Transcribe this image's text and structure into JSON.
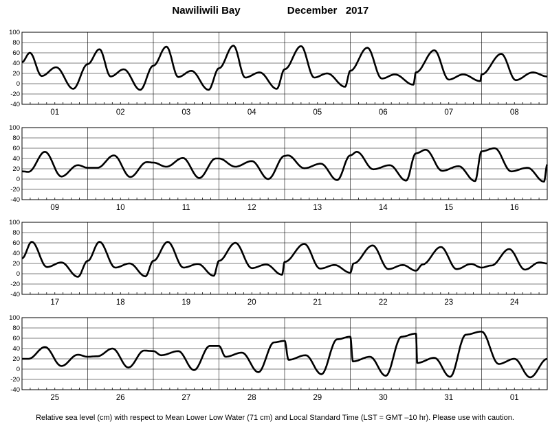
{
  "title": {
    "location": "Nawiliwili Bay",
    "period": "December   2017"
  },
  "footer": "Relative sea level (cm) with respect to Mean Lower Low Water (71 cm) and Local Standard Time (LST = GMT –10 hr). Please use with caution.",
  "chart_data": [
    {
      "type": "line",
      "panel": 1,
      "x_unit": "day of month",
      "categories": [
        "01",
        "02",
        "03",
        "04",
        "05",
        "06",
        "07",
        "08"
      ],
      "ylim": [
        -40,
        100
      ],
      "yticks": [
        -40,
        -20,
        0,
        20,
        40,
        60,
        80,
        100
      ],
      "grid": true,
      "series": [
        {
          "x": [
            0.0,
            0.12,
            0.3,
            0.52,
            0.78,
            1.0,
            1.18,
            1.35,
            1.55,
            1.8,
            2.0,
            2.2,
            2.38,
            2.58,
            2.84,
            3.0,
            3.22,
            3.4,
            3.62,
            3.88,
            4.0,
            4.25,
            4.45,
            4.65,
            4.92,
            5.0,
            5.26,
            5.48,
            5.68,
            5.96,
            6.0,
            6.28,
            6.5,
            6.72,
            6.98,
            7.0,
            7.3,
            7.52,
            7.78,
            8.0
          ],
          "y": [
            42,
            60,
            15,
            32,
            -10,
            38,
            67,
            14,
            28,
            -12,
            35,
            72,
            13,
            25,
            -12,
            30,
            74,
            12,
            22,
            -10,
            28,
            73,
            12,
            20,
            -6,
            25,
            70,
            10,
            18,
            -2,
            22,
            65,
            8,
            18,
            5,
            18,
            58,
            7,
            22,
            14
          ]
        }
      ]
    },
    {
      "type": "line",
      "panel": 2,
      "x_unit": "day of month",
      "categories": [
        "09",
        "10",
        "11",
        "12",
        "13",
        "14",
        "15",
        "16"
      ],
      "ylim": [
        -40,
        100
      ],
      "yticks": [
        -40,
        -20,
        0,
        20,
        40,
        60,
        80,
        100
      ],
      "grid": true,
      "series": [
        {
          "x": [
            8.0,
            8.1,
            8.35,
            8.6,
            8.85,
            9.0,
            9.15,
            9.4,
            9.65,
            9.9,
            10.0,
            10.2,
            10.45,
            10.7,
            10.95,
            11.0,
            11.25,
            11.5,
            11.75,
            12.0,
            12.05,
            12.3,
            12.55,
            12.8,
            13.0,
            13.1,
            13.35,
            13.6,
            13.85,
            14.0,
            14.15,
            14.4,
            14.65,
            14.9,
            15.0,
            15.2,
            15.45,
            15.7,
            15.95,
            16.0
          ],
          "y": [
            15,
            14,
            53,
            5,
            27,
            22,
            22,
            46,
            4,
            33,
            32,
            24,
            41,
            2,
            40,
            40,
            24,
            35,
            0,
            45,
            46,
            21,
            30,
            -2,
            46,
            53,
            19,
            27,
            -3,
            50,
            57,
            16,
            25,
            -4,
            54,
            60,
            15,
            22,
            -5,
            28
          ]
        }
      ]
    },
    {
      "type": "line",
      "panel": 3,
      "x_unit": "day of month",
      "categories": [
        "17",
        "18",
        "19",
        "20",
        "21",
        "22",
        "23",
        "24"
      ],
      "ylim": [
        -40,
        100
      ],
      "yticks": [
        -40,
        -20,
        0,
        20,
        40,
        60,
        80,
        100
      ],
      "grid": true,
      "series": [
        {
          "x": [
            16.0,
            16.15,
            16.38,
            16.6,
            16.85,
            17.0,
            17.18,
            17.42,
            17.64,
            17.88,
            18.0,
            18.22,
            18.46,
            18.68,
            18.92,
            19.0,
            19.25,
            19.5,
            19.72,
            19.96,
            20.0,
            20.3,
            20.54,
            20.76,
            21.0,
            21.05,
            21.34,
            21.58,
            21.8,
            22.0,
            22.1,
            22.38,
            22.62,
            22.84,
            23.0,
            23.15,
            23.42,
            23.66,
            23.88,
            24.0
          ],
          "y": [
            30,
            62,
            13,
            22,
            -6,
            25,
            62,
            12,
            20,
            -5,
            25,
            62,
            12,
            19,
            -4,
            25,
            60,
            11,
            18,
            -2,
            23,
            58,
            10,
            17,
            2,
            20,
            55,
            9,
            17,
            6,
            18,
            52,
            9,
            19,
            12,
            16,
            48,
            8,
            22,
            20
          ]
        }
      ]
    },
    {
      "type": "line",
      "panel": 4,
      "x_unit": "day of month",
      "categories": [
        "25",
        "26",
        "27",
        "28",
        "29",
        "30",
        "31",
        "01"
      ],
      "ylim": [
        -40,
        100
      ],
      "yticks": [
        -40,
        -20,
        0,
        20,
        40,
        60,
        80,
        100
      ],
      "grid": true,
      "series": [
        {
          "x": [
            24.0,
            24.1,
            24.35,
            24.6,
            24.85,
            25.0,
            25.15,
            25.38,
            25.62,
            25.86,
            26.0,
            26.12,
            26.38,
            26.62,
            26.86,
            27.0,
            27.1,
            27.35,
            27.6,
            27.84,
            28.0,
            28.06,
            28.32,
            28.56,
            28.8,
            29.0,
            29.04,
            29.3,
            29.54,
            29.78,
            30.0,
            30.02,
            30.28,
            30.52,
            30.76,
            31.0,
            31.26,
            31.5,
            31.74,
            32.0
          ],
          "y": [
            20,
            20,
            43,
            6,
            28,
            24,
            25,
            40,
            3,
            36,
            35,
            27,
            35,
            -2,
            45,
            45,
            24,
            32,
            -6,
            52,
            55,
            18,
            27,
            -10,
            58,
            63,
            15,
            24,
            -13,
            63,
            69,
            12,
            22,
            -15,
            67,
            73,
            10,
            20,
            -16,
            20
          ]
        }
      ]
    }
  ]
}
